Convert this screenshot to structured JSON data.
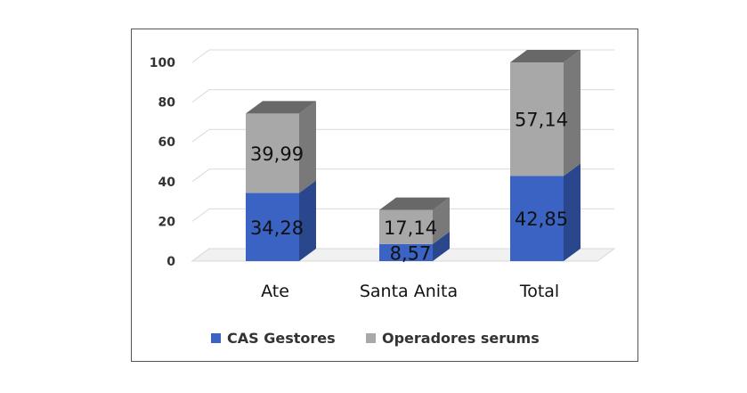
{
  "chart_data": {
    "type": "bar",
    "stacked": true,
    "categories": [
      "Ate",
      "Santa Anita",
      "Total"
    ],
    "series": [
      {
        "name": "CAS Gestores",
        "values": [
          34.28,
          8.57,
          42.85
        ],
        "labels": [
          "34,28",
          "8,57",
          "42,85"
        ],
        "color": "#3a63c4"
      },
      {
        "name": "Operadores serums",
        "values": [
          39.99,
          17.14,
          57.14
        ],
        "labels": [
          "39,99",
          "17,14",
          "57,14"
        ],
        "color": "#a8a8a8"
      }
    ],
    "yticks": [
      0,
      20,
      40,
      60,
      80,
      100
    ],
    "ylim": [
      0,
      100
    ],
    "grid": true,
    "legend": "bottom",
    "title": "",
    "xlabel": "",
    "ylabel": ""
  }
}
